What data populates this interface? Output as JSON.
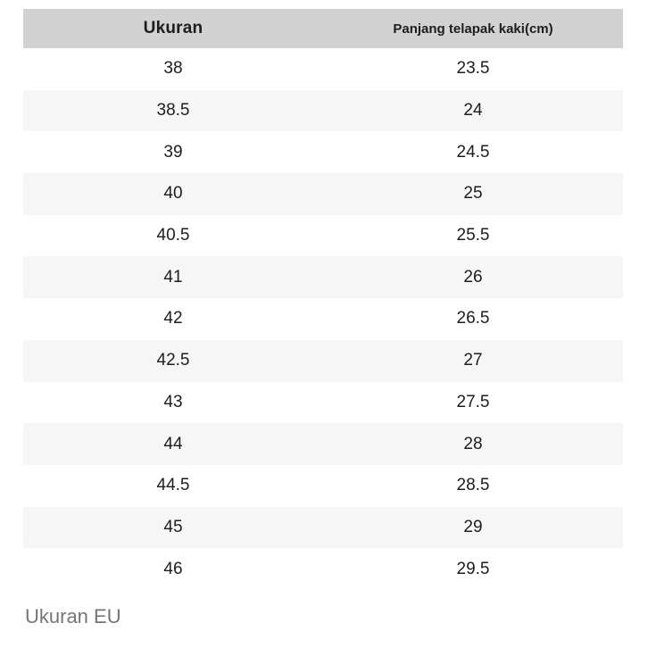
{
  "table": {
    "headers": [
      "Ukuran",
      "Panjang telapak kaki(cm)"
    ],
    "rows": [
      {
        "ukuran": "38",
        "panjang_cm": "23.5"
      },
      {
        "ukuran": "38.5",
        "panjang_cm": "24"
      },
      {
        "ukuran": "39",
        "panjang_cm": "24.5"
      },
      {
        "ukuran": "40",
        "panjang_cm": "25"
      },
      {
        "ukuran": "40.5",
        "panjang_cm": "25.5"
      },
      {
        "ukuran": "41",
        "panjang_cm": "26"
      },
      {
        "ukuran": "42",
        "panjang_cm": "26.5"
      },
      {
        "ukuran": "42.5",
        "panjang_cm": "27"
      },
      {
        "ukuran": "43",
        "panjang_cm": "27.5"
      },
      {
        "ukuran": "44",
        "panjang_cm": "28"
      },
      {
        "ukuran": "44.5",
        "panjang_cm": "28.5"
      },
      {
        "ukuran": "45",
        "panjang_cm": "29"
      },
      {
        "ukuran": "46",
        "panjang_cm": "29.5"
      }
    ]
  },
  "footer": {
    "label": "Ukuran EU"
  },
  "colors": {
    "header_bg": "#d2d2d2",
    "stripe_bg": "#f6f6f6",
    "row_bg": "#ffffff",
    "text": "#1d1d1d",
    "footer_text": "#757575",
    "page_bg": "#ffffff"
  }
}
